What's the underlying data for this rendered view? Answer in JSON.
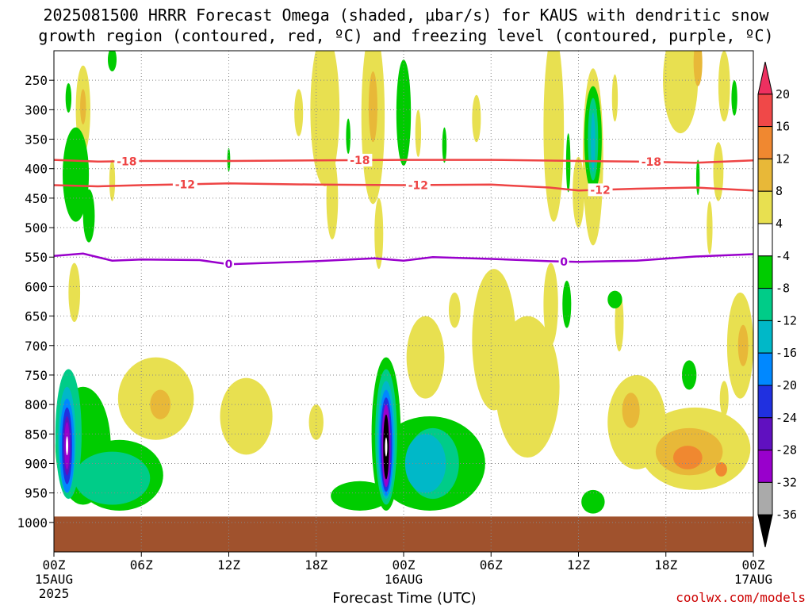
{
  "title": {
    "line1": "2025081500 HRRR Forecast Omega (shaded, μbar/s) for KAUS with dendritic snow",
    "line2": "growth region (contoured, red, ºC) and freezing level (contoured, purple, ºC)"
  },
  "xlabel": "Forecast Time (UTC)",
  "credit": "coolwx.com/models",
  "colors": {
    "isotherm": "#ee4444",
    "freezing_level": "#9900cc",
    "ground": "#a0522d",
    "grid": "#888888"
  },
  "chart_data": {
    "type": "heatmap",
    "title": "2025081500 HRRR Forecast Omega (shaded, μbar/s) for KAUS with dendritic snow growth region (contoured, red, ºC) and freezing level (contoured, purple, ºC)",
    "xlabel": "Forecast Time (UTC)",
    "ylabel": "",
    "x_range_hours": [
      0,
      48
    ],
    "y_range_hPa": [
      1050,
      200
    ],
    "grid": true,
    "x_ticks": [
      {
        "hour": 0,
        "label": "00Z",
        "sub": "15AUG",
        "sub2": "2025"
      },
      {
        "hour": 6,
        "label": "06Z",
        "sub": "",
        "sub2": ""
      },
      {
        "hour": 12,
        "label": "12Z",
        "sub": "",
        "sub2": ""
      },
      {
        "hour": 18,
        "label": "18Z",
        "sub": "",
        "sub2": ""
      },
      {
        "hour": 24,
        "label": "00Z",
        "sub": "16AUG",
        "sub2": ""
      },
      {
        "hour": 30,
        "label": "06Z",
        "sub": "",
        "sub2": ""
      },
      {
        "hour": 36,
        "label": "12Z",
        "sub": "",
        "sub2": ""
      },
      {
        "hour": 42,
        "label": "18Z",
        "sub": "",
        "sub2": ""
      },
      {
        "hour": 48,
        "label": "00Z",
        "sub": "17AUG",
        "sub2": ""
      }
    ],
    "y_ticks": [
      250,
      300,
      350,
      400,
      450,
      500,
      550,
      600,
      650,
      700,
      750,
      800,
      850,
      900,
      950,
      1000
    ],
    "colorbar": {
      "levels": [
        "20",
        "16",
        "12",
        "8",
        "4",
        "-4",
        "-8",
        "-12",
        "-16",
        "-20",
        "-24",
        "-28",
        "-32",
        "-36"
      ],
      "colors": [
        "#ee3060",
        "#f04848",
        "#f08830",
        "#e8b838",
        "#e8e050",
        "#ffffff",
        "#00cc00",
        "#00cc88",
        "#00b8c8",
        "#0088ff",
        "#2030e0",
        "#6010c0",
        "#9900cc",
        "#aaaaaa",
        "#000000"
      ]
    },
    "isotherms": [
      {
        "label": "-18",
        "color": "#ee4444",
        "points": [
          [
            0,
            385
          ],
          [
            3,
            388
          ],
          [
            6,
            387
          ],
          [
            12,
            387
          ],
          [
            18,
            386
          ],
          [
            24,
            385
          ],
          [
            30,
            385
          ],
          [
            36,
            387
          ],
          [
            40,
            388
          ],
          [
            44,
            390
          ],
          [
            48,
            386
          ]
        ],
        "label_hours": [
          5,
          21,
          41
        ]
      },
      {
        "label": "-12",
        "color": "#ee4444",
        "points": [
          [
            0,
            428
          ],
          [
            3,
            430
          ],
          [
            6,
            428
          ],
          [
            12,
            425
          ],
          [
            18,
            427
          ],
          [
            24,
            428
          ],
          [
            30,
            427
          ],
          [
            34,
            432
          ],
          [
            36,
            437
          ],
          [
            40,
            434
          ],
          [
            44,
            432
          ],
          [
            48,
            437
          ]
        ],
        "label_hours": [
          9,
          25,
          37.5
        ]
      },
      {
        "label": "0",
        "color": "#9900cc",
        "points": [
          [
            0,
            548
          ],
          [
            2,
            544
          ],
          [
            4,
            556
          ],
          [
            6,
            554
          ],
          [
            10,
            555
          ],
          [
            12,
            562
          ],
          [
            18,
            557
          ],
          [
            22,
            552
          ],
          [
            24,
            556
          ],
          [
            26,
            550
          ],
          [
            30,
            553
          ],
          [
            34,
            557
          ],
          [
            36,
            558
          ],
          [
            40,
            556
          ],
          [
            44,
            549
          ],
          [
            48,
            545
          ]
        ],
        "label_hours": [
          12,
          35
        ]
      }
    ],
    "omega_regions": [
      {
        "level": 4,
        "cx": 1.4,
        "cy": 610,
        "rx": 0.4,
        "ry": 50
      },
      {
        "level": 4,
        "cx": 2.0,
        "cy": 300,
        "rx": 0.5,
        "ry": 75
      },
      {
        "level": 8,
        "cx": 2.0,
        "cy": 295,
        "rx": 0.2,
        "ry": 30
      },
      {
        "level": 4,
        "cx": 4.0,
        "cy": 420,
        "rx": 0.2,
        "ry": 35
      },
      {
        "level": -4,
        "cx": 1.0,
        "cy": 280,
        "rx": 0.2,
        "ry": 25
      },
      {
        "level": -4,
        "cx": 1.5,
        "cy": 410,
        "rx": 0.9,
        "ry": 80
      },
      {
        "level": -4,
        "cx": 2.4,
        "cy": 480,
        "rx": 0.4,
        "ry": 45
      },
      {
        "level": -4,
        "cx": 4.0,
        "cy": 215,
        "rx": 0.3,
        "ry": 20
      },
      {
        "level": 4,
        "cx": 7.0,
        "cy": 790,
        "rx": 2.6,
        "ry": 70
      },
      {
        "level": 8,
        "cx": 7.3,
        "cy": 800,
        "rx": 0.7,
        "ry": 25
      },
      {
        "level": 4,
        "cx": 13.2,
        "cy": 820,
        "rx": 1.8,
        "ry": 65
      },
      {
        "level": 4,
        "cx": 18.0,
        "cy": 830,
        "rx": 0.5,
        "ry": 30
      },
      {
        "level": 4,
        "cx": 18.6,
        "cy": 300,
        "rx": 1.0,
        "ry": 130
      },
      {
        "level": 4,
        "cx": 19.1,
        "cy": 450,
        "rx": 0.4,
        "ry": 70
      },
      {
        "level": 4,
        "cx": 16.8,
        "cy": 305,
        "rx": 0.3,
        "ry": 40
      },
      {
        "level": 4,
        "cx": 21.9,
        "cy": 310,
        "rx": 0.8,
        "ry": 150
      },
      {
        "level": 8,
        "cx": 21.9,
        "cy": 295,
        "rx": 0.3,
        "ry": 60
      },
      {
        "level": 4,
        "cx": 22.3,
        "cy": 510,
        "rx": 0.3,
        "ry": 60
      },
      {
        "level": -4,
        "cx": 24.0,
        "cy": 305,
        "rx": 0.5,
        "ry": 90
      },
      {
        "level": -4,
        "cx": 20.2,
        "cy": 345,
        "rx": 0.15,
        "ry": 30
      },
      {
        "level": -4,
        "cx": 12.0,
        "cy": 385,
        "rx": 0.1,
        "ry": 20
      },
      {
        "level": 4,
        "cx": 25.0,
        "cy": 340,
        "rx": 0.2,
        "ry": 40
      },
      {
        "level": -4,
        "cx": 26.8,
        "cy": 360,
        "rx": 0.15,
        "ry": 30
      },
      {
        "level": 4,
        "cx": 25.5,
        "cy": 720,
        "rx": 1.3,
        "ry": 70
      },
      {
        "level": 4,
        "cx": 27.5,
        "cy": 640,
        "rx": 0.4,
        "ry": 30
      },
      {
        "level": 4,
        "cx": 30.2,
        "cy": 690,
        "rx": 1.5,
        "ry": 120
      },
      {
        "level": 4,
        "cx": 29.0,
        "cy": 315,
        "rx": 0.3,
        "ry": 40
      },
      {
        "level": 4,
        "cx": 32.5,
        "cy": 770,
        "rx": 2.2,
        "ry": 120
      },
      {
        "level": 4,
        "cx": 34.1,
        "cy": 630,
        "rx": 0.5,
        "ry": 70
      },
      {
        "level": 4,
        "cx": 34.3,
        "cy": 330,
        "rx": 0.7,
        "ry": 160
      },
      {
        "level": -4,
        "cx": 35.3,
        "cy": 390,
        "rx": 0.15,
        "ry": 50
      },
      {
        "level": -4,
        "cx": 35.2,
        "cy": 630,
        "rx": 0.3,
        "ry": 40
      },
      {
        "level": 4,
        "cx": 36.0,
        "cy": 440,
        "rx": 0.4,
        "ry": 60
      },
      {
        "level": 4,
        "cx": 37.0,
        "cy": 380,
        "rx": 0.7,
        "ry": 150
      },
      {
        "level": -4,
        "cx": 37.0,
        "cy": 350,
        "rx": 0.6,
        "ry": 90
      },
      {
        "level": -8,
        "cx": 37.0,
        "cy": 350,
        "rx": 0.35,
        "ry": 70
      },
      {
        "level": -12,
        "cx": 37.0,
        "cy": 355,
        "rx": 0.15,
        "ry": 50
      },
      {
        "level": 4,
        "cx": 38.5,
        "cy": 280,
        "rx": 0.2,
        "ry": 40
      },
      {
        "level": 4,
        "cx": 38.8,
        "cy": 660,
        "rx": 0.3,
        "ry": 50
      },
      {
        "level": 4,
        "cx": 40.0,
        "cy": 830,
        "rx": 2.0,
        "ry": 80
      },
      {
        "level": 8,
        "cx": 39.6,
        "cy": 810,
        "rx": 0.6,
        "ry": 30
      },
      {
        "level": -4,
        "cx": 38.5,
        "cy": 622,
        "rx": 0.5,
        "ry": 15
      },
      {
        "level": 4,
        "cx": 44.0,
        "cy": 875,
        "rx": 3.8,
        "ry": 70
      },
      {
        "level": 8,
        "cx": 43.6,
        "cy": 880,
        "rx": 2.3,
        "ry": 40
      },
      {
        "level": 12,
        "cx": 43.5,
        "cy": 890,
        "rx": 1.0,
        "ry": 20
      },
      {
        "level": 12,
        "cx": 45.8,
        "cy": 910,
        "rx": 0.4,
        "ry": 12
      },
      {
        "level": 4,
        "cx": 43.0,
        "cy": 250,
        "rx": 1.2,
        "ry": 90
      },
      {
        "level": 8,
        "cx": 44.2,
        "cy": 220,
        "rx": 0.3,
        "ry": 40
      },
      {
        "level": 4,
        "cx": 45.6,
        "cy": 405,
        "rx": 0.35,
        "ry": 50
      },
      {
        "level": 4,
        "cx": 46.0,
        "cy": 260,
        "rx": 0.4,
        "ry": 60
      },
      {
        "level": 4,
        "cx": 45.0,
        "cy": 500,
        "rx": 0.2,
        "ry": 45
      },
      {
        "level": -4,
        "cx": 44.2,
        "cy": 415,
        "rx": 0.12,
        "ry": 30
      },
      {
        "level": -4,
        "cx": 46.7,
        "cy": 280,
        "rx": 0.2,
        "ry": 30
      },
      {
        "level": -4,
        "cx": 43.6,
        "cy": 750,
        "rx": 0.5,
        "ry": 25
      },
      {
        "level": 4,
        "cx": 47.1,
        "cy": 700,
        "rx": 0.9,
        "ry": 90
      },
      {
        "level": 8,
        "cx": 47.3,
        "cy": 700,
        "rx": 0.35,
        "ry": 35
      },
      {
        "level": 4,
        "cx": 46.0,
        "cy": 790,
        "rx": 0.3,
        "ry": 30
      },
      {
        "level": -4,
        "cx": 2.0,
        "cy": 870,
        "rx": 1.9,
        "ry": 100
      },
      {
        "level": -4,
        "cx": 4.5,
        "cy": 920,
        "rx": 3.0,
        "ry": 60
      },
      {
        "level": -8,
        "cx": 4.0,
        "cy": 925,
        "rx": 2.6,
        "ry": 45
      },
      {
        "level": -8,
        "cx": 1.0,
        "cy": 850,
        "rx": 0.9,
        "ry": 110
      },
      {
        "level": -12,
        "cx": 0.9,
        "cy": 860,
        "rx": 0.6,
        "ry": 90
      },
      {
        "level": -16,
        "cx": 0.9,
        "cy": 870,
        "rx": 0.5,
        "ry": 80
      },
      {
        "level": -20,
        "cx": 0.9,
        "cy": 870,
        "rx": 0.35,
        "ry": 65
      },
      {
        "level": -24,
        "cx": 0.9,
        "cy": 870,
        "rx": 0.25,
        "ry": 50
      },
      {
        "level": -28,
        "cx": 0.9,
        "cy": 870,
        "rx": 0.18,
        "ry": 40
      },
      {
        "level": -4,
        "cx": 25.8,
        "cy": 900,
        "rx": 3.8,
        "ry": 80
      },
      {
        "level": -4,
        "cx": 21.0,
        "cy": 955,
        "rx": 2.0,
        "ry": 25
      },
      {
        "level": -8,
        "cx": 26.0,
        "cy": 900,
        "rx": 1.8,
        "ry": 60
      },
      {
        "level": -12,
        "cx": 25.5,
        "cy": 900,
        "rx": 1.4,
        "ry": 50
      },
      {
        "level": -4,
        "cx": 22.8,
        "cy": 850,
        "rx": 1.0,
        "ry": 130
      },
      {
        "level": -8,
        "cx": 22.8,
        "cy": 855,
        "rx": 0.75,
        "ry": 115
      },
      {
        "level": -12,
        "cx": 22.8,
        "cy": 860,
        "rx": 0.6,
        "ry": 100
      },
      {
        "level": -16,
        "cx": 22.8,
        "cy": 865,
        "rx": 0.5,
        "ry": 90
      },
      {
        "level": -20,
        "cx": 22.8,
        "cy": 868,
        "rx": 0.4,
        "ry": 80
      },
      {
        "level": -28,
        "cx": 22.8,
        "cy": 870,
        "rx": 0.3,
        "ry": 70
      },
      {
        "level": -36,
        "cx": 22.8,
        "cy": 872,
        "rx": 0.2,
        "ry": 55
      },
      {
        "level": -4,
        "cx": 37.0,
        "cy": 965,
        "rx": 0.8,
        "ry": 20
      }
    ]
  }
}
